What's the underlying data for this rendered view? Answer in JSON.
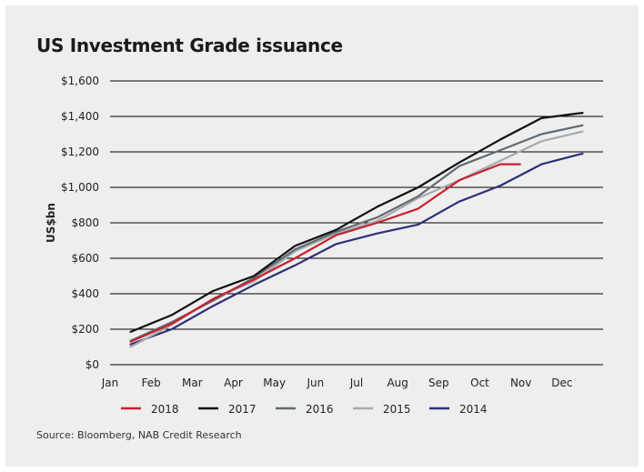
{
  "chart_data": {
    "type": "line",
    "title": "US Investment Grade issuance",
    "ylabel": "US$bn",
    "xlabel": "",
    "categories": [
      "Jan",
      "Feb",
      "Mar",
      "Apr",
      "May",
      "Jun",
      "Jul",
      "Aug",
      "Sep",
      "Oct",
      "Nov",
      "Dec"
    ],
    "ylim": [
      0,
      1600
    ],
    "yticks": [
      {
        "value": 0,
        "label": "$0"
      },
      {
        "value": 200,
        "label": "$200"
      },
      {
        "value": 400,
        "label": "$400"
      },
      {
        "value": 600,
        "label": "$600"
      },
      {
        "value": 800,
        "label": "$800"
      },
      {
        "value": 1000,
        "label": "$1,000"
      },
      {
        "value": 1200,
        "label": "$1,200"
      },
      {
        "value": 1400,
        "label": "$1,400"
      },
      {
        "value": 1600,
        "label": "$1,600"
      }
    ],
    "grid": true,
    "legend_position": "bottom",
    "series": [
      {
        "name": "2018",
        "color": "#c8202f",
        "x": [
          0.5,
          1.5,
          2.5,
          3.5,
          4.5,
          5.5,
          6.5,
          7.5,
          8.5,
          9.5,
          9.98
        ],
        "y": [
          130,
          230,
          370,
          480,
          600,
          730,
          800,
          880,
          1040,
          1130,
          1130
        ]
      },
      {
        "name": "2017",
        "color": "#111111",
        "x": [
          0.5,
          1.5,
          2.5,
          3.5,
          4.5,
          5.5,
          6.5,
          7.5,
          8.5,
          9.5,
          10.5,
          11.5
        ],
        "y": [
          185,
          280,
          415,
          500,
          670,
          760,
          890,
          1000,
          1140,
          1270,
          1390,
          1420
        ]
      },
      {
        "name": "2016",
        "color": "#5f6b72",
        "x": [
          0.5,
          1.5,
          2.5,
          3.5,
          4.5,
          5.5,
          6.5,
          7.5,
          8.5,
          9.5,
          10.5,
          11.5
        ],
        "y": [
          135,
          240,
          360,
          490,
          650,
          750,
          830,
          950,
          1120,
          1210,
          1300,
          1350
        ]
      },
      {
        "name": "2015",
        "color": "#a7abad",
        "x": [
          0.5,
          1.5,
          2.5,
          3.5,
          4.5,
          5.5,
          6.5,
          7.5,
          8.5,
          9.5,
          10.5,
          11.5
        ],
        "y": [
          100,
          225,
          370,
          470,
          640,
          740,
          810,
          940,
          1040,
          1150,
          1260,
          1315
        ]
      },
      {
        "name": "2014",
        "color": "#2e2f78",
        "x": [
          0.5,
          1.5,
          2.5,
          3.5,
          4.5,
          5.5,
          6.5,
          7.5,
          8.5,
          9.5,
          10.5,
          11.5
        ],
        "y": [
          115,
          200,
          330,
          450,
          560,
          680,
          740,
          790,
          920,
          1010,
          1130,
          1190
        ]
      }
    ]
  },
  "source": "Source: Bloomberg, NAB Credit Research"
}
